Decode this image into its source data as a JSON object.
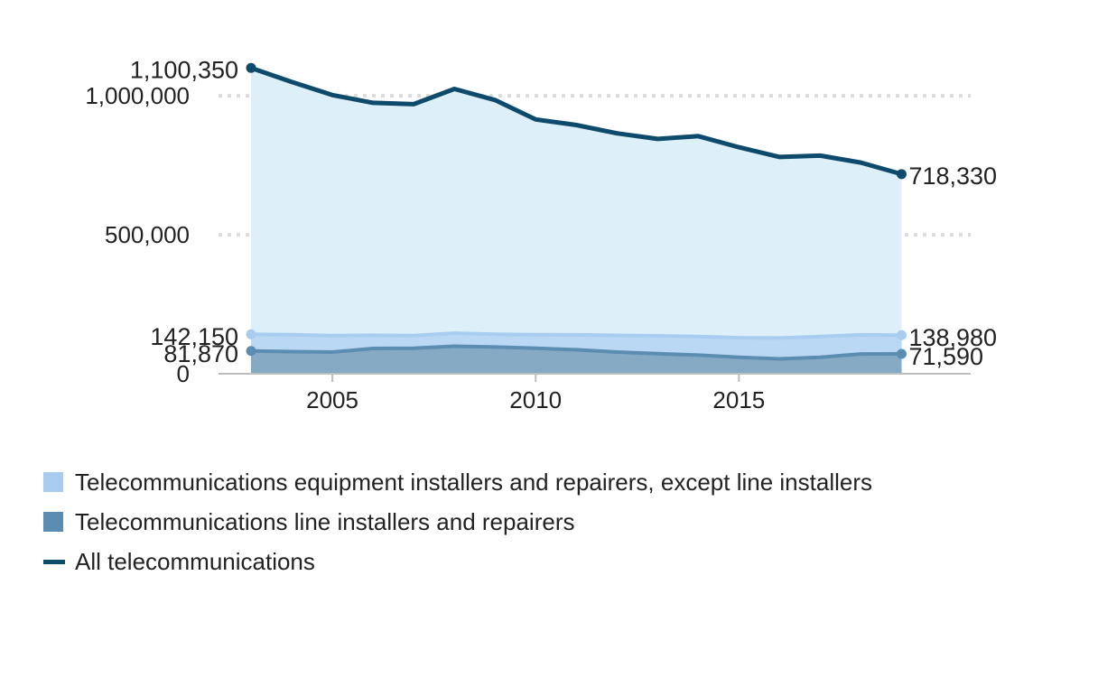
{
  "chart_data": {
    "type": "area",
    "x": [
      2003,
      2004,
      2005,
      2006,
      2007,
      2008,
      2009,
      2010,
      2011,
      2012,
      2013,
      2014,
      2015,
      2016,
      2017,
      2018,
      2019
    ],
    "series": [
      {
        "name": "Telecommunications equipment installers and repairers, except line installers",
        "color": "#a8cdf0",
        "values": [
          142150,
          140500,
          137000,
          138500,
          137000,
          146000,
          142000,
          140500,
          140000,
          138000,
          136500,
          134000,
          129500,
          128500,
          134000,
          140000,
          138980
        ]
      },
      {
        "name": "Telecommunications line installers and repairers",
        "color": "#5b8db3",
        "values": [
          81870,
          79500,
          78000,
          91000,
          91500,
          99000,
          96000,
          92000,
          86500,
          78000,
          72000,
          67000,
          59000,
          53500,
          59000,
          71000,
          71590
        ]
      },
      {
        "name": "All telecommunications",
        "color": "#0d4a6b",
        "values": [
          1100350,
          1050000,
          1003000,
          975000,
          970000,
          1025000,
          985000,
          915000,
          895000,
          865000,
          845000,
          855000,
          815000,
          780000,
          785000,
          760000,
          718330
        ]
      }
    ],
    "x_ticks": [
      "2005",
      "2010",
      "2015"
    ],
    "y_ticks": [
      "0",
      "500,000",
      "1,000,000"
    ],
    "ylim": [
      0,
      1150000
    ],
    "xlim": [
      2002.2,
      2020.7
    ],
    "grid": "horizontal dotted",
    "legend_position": "bottom",
    "annotations": {
      "total_start": "1,100,350",
      "total_end": "718,330",
      "equipment_start": "142,150",
      "equipment_end": "138,980",
      "line_start": "81,870",
      "line_end": "71,590"
    }
  }
}
